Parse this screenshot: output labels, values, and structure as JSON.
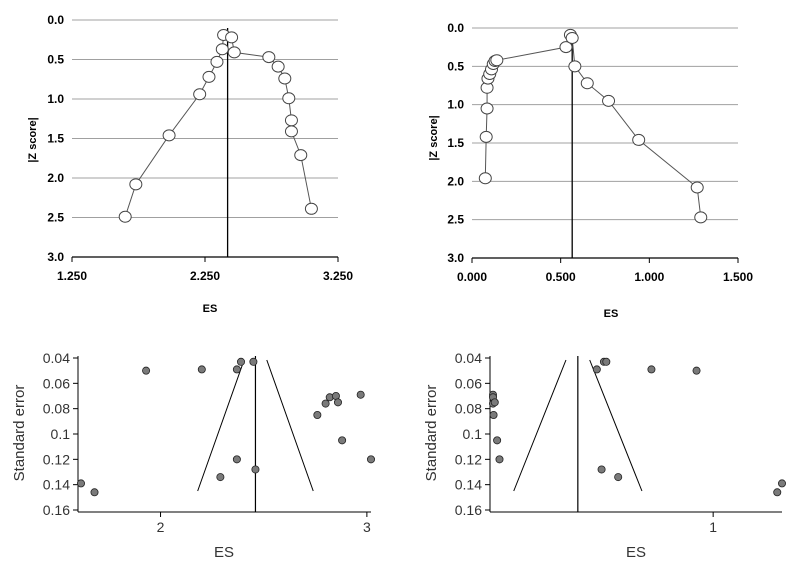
{
  "chart_data": [
    {
      "type": "line",
      "xlabel": "ES",
      "ylabel": "|Z score|",
      "xlim": [
        1.25,
        3.25
      ],
      "ylim": [
        3.0,
        0.0
      ],
      "y_inverted": true,
      "xticks": [
        1.25,
        2.25,
        3.25
      ],
      "xtick_labels": [
        "1.250",
        "2.250",
        "3.250"
      ],
      "yticks": [
        0.0,
        0.5,
        1.0,
        1.5,
        2.0,
        2.5,
        3.0
      ],
      "ytick_labels": [
        "0.0",
        "0.5",
        "1.0",
        "1.5",
        "2.0",
        "2.5",
        "3.0"
      ],
      "grid": "horizontal",
      "reference_x": 2.42,
      "series": [
        {
          "x": [
            1.65,
            1.73,
            1.98,
            2.21,
            2.28,
            2.34,
            2.38,
            2.39,
            2.45,
            2.47,
            2.73,
            2.8,
            2.85,
            2.88,
            2.9,
            2.9,
            2.97,
            3.05
          ],
          "y": [
            2.49,
            2.08,
            1.46,
            0.94,
            0.72,
            0.53,
            0.37,
            0.19,
            0.22,
            0.41,
            0.47,
            0.59,
            0.74,
            0.99,
            1.27,
            1.41,
            1.71,
            2.39
          ]
        }
      ]
    },
    {
      "type": "line",
      "xlabel": "ES",
      "ylabel": "|Z score|",
      "xlim": [
        0.0,
        1.5
      ],
      "ylim": [
        3.0,
        0.0
      ],
      "y_inverted": true,
      "xticks": [
        0.0,
        0.5,
        1.0,
        1.5
      ],
      "xtick_labels": [
        "0.000",
        "0.500",
        "1.000",
        "1.500"
      ],
      "yticks": [
        0.0,
        0.5,
        1.0,
        1.5,
        2.0,
        2.5,
        3.0
      ],
      "ytick_labels": [
        "0.0",
        "0.5",
        "1.0",
        "1.5",
        "2.0",
        "2.5",
        "3.0"
      ],
      "grid": "horizontal",
      "reference_x": 0.565,
      "series": [
        {
          "x": [
            0.075,
            0.08,
            0.085,
            0.085,
            0.09,
            0.1,
            0.11,
            0.12,
            0.13,
            0.14,
            0.53,
            0.555,
            0.565,
            0.58,
            0.65,
            0.77,
            0.94,
            1.27,
            1.29
          ],
          "y": [
            1.96,
            1.42,
            1.05,
            0.78,
            0.66,
            0.6,
            0.54,
            0.47,
            0.43,
            0.42,
            0.25,
            0.09,
            0.13,
            0.5,
            0.72,
            0.95,
            1.46,
            2.08,
            2.47
          ]
        }
      ]
    },
    {
      "type": "scatter",
      "xlabel": "ES",
      "ylabel": "Standard error",
      "xlim": [
        1.6,
        3.02
      ],
      "ylim": [
        0.16,
        0.04
      ],
      "y_inverted": true,
      "xticks": [
        2,
        3
      ],
      "xtick_labels": [
        "2",
        "3"
      ],
      "yticks": [
        0.04,
        0.06,
        0.08,
        0.1,
        0.12,
        0.14,
        0.16
      ],
      "ytick_labels": [
        "0.04",
        "0.06",
        "0.08",
        "0.1",
        "0.12",
        "0.14",
        "0.16"
      ],
      "grid": "none",
      "reference_x": 2.46,
      "funnel": {
        "center": 2.46,
        "se_top": 0.04,
        "se_bottom": 0.145,
        "half_width_top": 0.055,
        "half_width_bottom": 0.28
      },
      "points": {
        "x": [
          1.6,
          1.68,
          1.93,
          2.2,
          2.37,
          2.39,
          2.37,
          2.45,
          2.29,
          2.46,
          2.76,
          2.8,
          2.82,
          2.85,
          2.86,
          2.88,
          2.97,
          3.02
        ],
        "y": [
          0.139,
          0.146,
          0.05,
          0.049,
          0.049,
          0.043,
          0.12,
          0.043,
          0.134,
          0.128,
          0.085,
          0.076,
          0.071,
          0.07,
          0.075,
          0.105,
          0.069,
          0.12
        ]
      }
    },
    {
      "type": "scatter",
      "xlabel": "ES",
      "ylabel": "Standard error",
      "xlim": [
        0.06,
        1.29
      ],
      "ylim": [
        0.16,
        0.04
      ],
      "y_inverted": true,
      "xticks": [
        1
      ],
      "xtick_labels": [
        "1"
      ],
      "yticks": [
        0.04,
        0.06,
        0.08,
        0.1,
        0.12,
        0.14,
        0.16
      ],
      "ytick_labels": [
        "0.04",
        "0.06",
        "0.08",
        "0.1",
        "0.12",
        "0.14",
        "0.16"
      ],
      "grid": "none",
      "reference_x": 0.43,
      "funnel": {
        "center": 0.43,
        "se_top": 0.04,
        "se_bottom": 0.145,
        "half_width_top": 0.05,
        "half_width_bottom": 0.27
      },
      "points": {
        "x": [
          0.065,
          0.07,
          0.072,
          0.075,
          0.08,
          0.09,
          0.1,
          0.51,
          0.53,
          0.54,
          0.55,
          0.6,
          0.74,
          0.93,
          1.27,
          1.29
        ],
        "y": [
          0.069,
          0.071,
          0.076,
          0.085,
          0.075,
          0.105,
          0.12,
          0.049,
          0.128,
          0.043,
          0.043,
          0.134,
          0.049,
          0.05,
          0.146,
          0.139
        ]
      }
    }
  ]
}
